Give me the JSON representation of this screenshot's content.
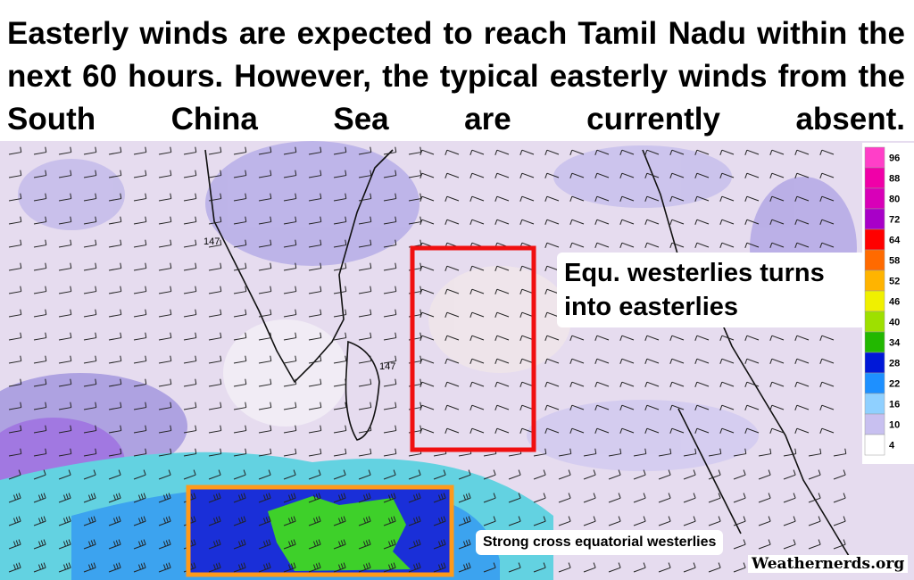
{
  "headline": "Easterly winds are expected to reach Tamil Nadu within the next 60 hours. However, the typical easterly winds from the South China Sea are currently absent.",
  "map": {
    "contour_labels": [
      "147",
      "147"
    ],
    "annotations": [
      "Equ. westerlies turns into easterlies",
      "Strong cross equatorial westerlies"
    ],
    "watermark": "Weathernerds.org"
  },
  "colorbar": {
    "labels": [
      96,
      88,
      80,
      72,
      64,
      58,
      52,
      46,
      40,
      34,
      28,
      22,
      16,
      10,
      4
    ],
    "colors": [
      "#ff3fc8",
      "#f000a8",
      "#d800b8",
      "#a800c8",
      "#ff0000",
      "#ff6a00",
      "#ffb400",
      "#f0f000",
      "#9ee000",
      "#22b800",
      "#0018d8",
      "#1e90ff",
      "#8fd0ff",
      "#c8c0f0",
      "#ffffff"
    ]
  }
}
